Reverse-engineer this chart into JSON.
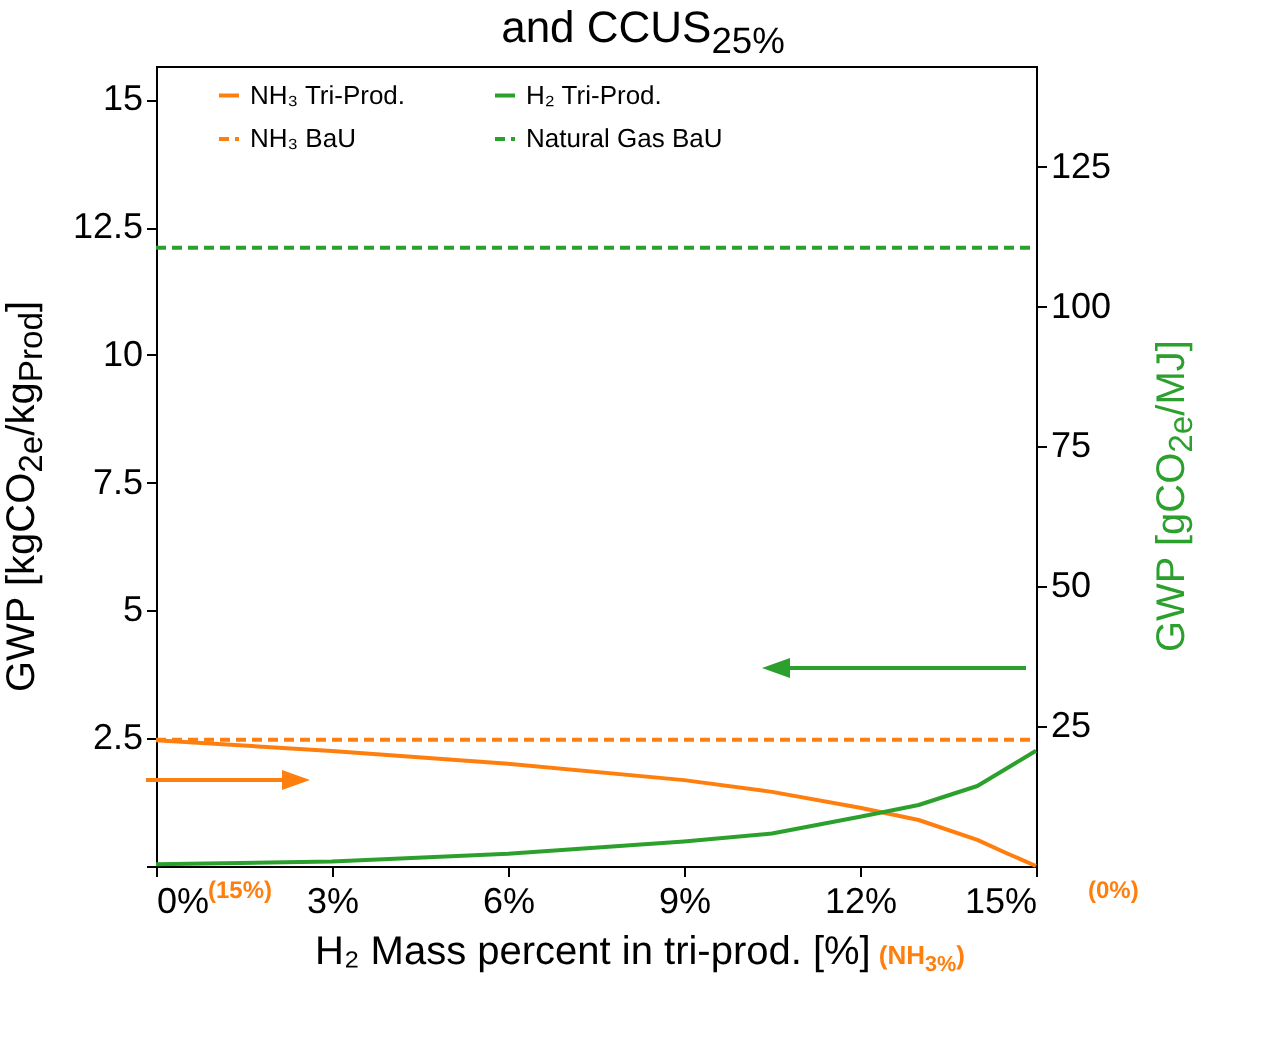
{
  "chart_data": {
    "type": "line",
    "title": "and CCUS$_{25%}$",
    "xlabel": "H₂ Mass percent in tri-prod. [%]",
    "ylabel": "GWP [kgCO$_{2e}$/kg$_{Prod}$]",
    "y2label": "GWP [gCO$_{2e}$/MJ]",
    "x": [
      0,
      3,
      6,
      9,
      10.5,
      12,
      13,
      14,
      14.5,
      15
    ],
    "series": [
      {
        "name": "NH₃ Tri-Prod.",
        "color": "#ff7f0e",
        "values": [
          2.46,
          2.25,
          2.0,
          1.68,
          1.45,
          1.14,
          0.9,
          0.51,
          0.25,
          0
        ]
      },
      {
        "name": "H₂ Tri-Prod.",
        "color": "#2ca02c",
        "axis": "y2",
        "x": [
          0,
          3,
          6,
          9,
          10.5,
          12,
          13,
          14,
          15
        ],
        "values": [
          0.3,
          0.8,
          2.2,
          4.4,
          5.8,
          8.8,
          10.9,
          14.3,
          20.6
        ]
      },
      {
        "name": "NH₃ BaU",
        "color": "#ff7f0e",
        "line_style": "dashed",
        "x": [
          0,
          15
        ],
        "values": [
          2.47,
          2.47
        ]
      },
      {
        "name": "Natural Gas BaU",
        "color": "#2ca02c",
        "line_style": "dashed",
        "axis": "y2",
        "x": [
          0,
          15
        ],
        "values": [
          110.5,
          110.5
        ]
      }
    ],
    "xlim": [
      0,
      15
    ],
    "xticks": [
      {
        "value": 0,
        "label": "0%"
      },
      {
        "value": 3,
        "label": "3%"
      },
      {
        "value": 6,
        "label": "6%"
      },
      {
        "value": 9,
        "label": "9%"
      },
      {
        "value": 12,
        "label": "12%"
      },
      {
        "value": 15,
        "label": "15%"
      }
    ],
    "ylim": [
      0,
      15.65
    ],
    "yticks": [
      {
        "value": 0,
        "label": null
      },
      2.5,
      5,
      7.5,
      10,
      12.5,
      15
    ],
    "y2lim": [
      0,
      143
    ],
    "y2ticks": [
      25,
      50,
      75,
      100,
      125
    ],
    "annotations": [
      {
        "text": "(15%)",
        "x": 0,
        "y": 0
      },
      {
        "text": "(0%)",
        "x": 15,
        "y": 0
      },
      "(NH$_{3%}$)"
    ],
    "legend": "top",
    "grid": false,
    "line_style": "solid",
    "marker": "none"
  }
}
